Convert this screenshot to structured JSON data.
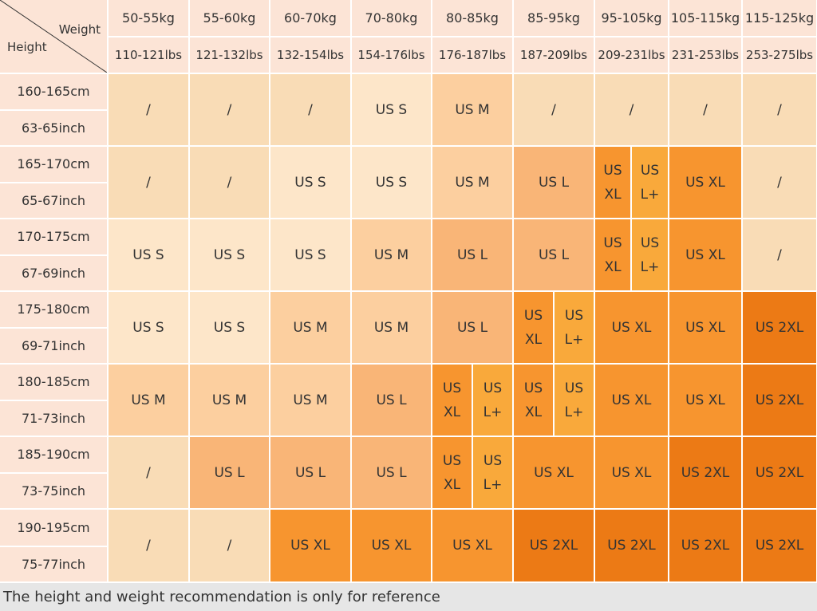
{
  "header": {
    "weight_label": "Weight",
    "height_label": "Height",
    "columns": [
      {
        "kg": "50-55kg",
        "lbs": "110-121lbs"
      },
      {
        "kg": "55-60kg",
        "lbs": "121-132lbs"
      },
      {
        "kg": "60-70kg",
        "lbs": "132-154lbs"
      },
      {
        "kg": "70-80kg",
        "lbs": "154-176lbs"
      },
      {
        "kg": "80-85kg",
        "lbs": "176-187lbs"
      },
      {
        "kg": "85-95kg",
        "lbs": "187-209lbs"
      },
      {
        "kg": "95-105kg",
        "lbs": "209-231lbs"
      },
      {
        "kg": "105-115kg",
        "lbs": "231-253lbs"
      },
      {
        "kg": "115-125kg",
        "lbs": "253-275lbs"
      }
    ]
  },
  "palette": {
    "/": "#f9dcb6",
    "US S": "#fde6c9",
    "US M": "#fccf9f",
    "US L": "#f9b577",
    "US XL": "#f7952f",
    "US L+": "#f9a93b",
    "US 2XL": "#ec7a15"
  },
  "rows": [
    {
      "cm": "160-165cm",
      "inch": "63-65inch",
      "cells": [
        "/",
        "/",
        "/",
        "US S",
        "US M",
        "/",
        "/",
        "/",
        "/"
      ]
    },
    {
      "cm": "165-170cm",
      "inch": "65-67inch",
      "cells": [
        "/",
        "/",
        "US S",
        "US S",
        "US M",
        "US L",
        [
          "US XL",
          "US L+"
        ],
        "US XL",
        "/"
      ]
    },
    {
      "cm": "170-175cm",
      "inch": "67-69inch",
      "cells": [
        "US S",
        "US S",
        "US S",
        "US M",
        "US L",
        "US L",
        [
          "US XL",
          "US L+"
        ],
        "US XL",
        "/"
      ]
    },
    {
      "cm": "175-180cm",
      "inch": "69-71inch",
      "cells": [
        "US S",
        "US S",
        "US M",
        "US M",
        "US L",
        [
          "US XL",
          "US L+"
        ],
        "US XL",
        "US XL",
        "US 2XL"
      ]
    },
    {
      "cm": "180-185cm",
      "inch": "71-73inch",
      "cells": [
        "US M",
        "US M",
        "US M",
        "US L",
        [
          "US XL",
          "US L+"
        ],
        [
          "US XL",
          "US L+"
        ],
        "US XL",
        "US XL",
        "US 2XL"
      ]
    },
    {
      "cm": "185-190cm",
      "inch": "73-75inch",
      "cells": [
        "/",
        "US L",
        "US L",
        "US L",
        [
          "US XL",
          "US L+"
        ],
        "US XL",
        "US XL",
        "US 2XL",
        "US 2XL"
      ]
    },
    {
      "cm": "190-195cm",
      "inch": "75-77inch",
      "cells": [
        "/",
        "/",
        "US XL",
        "US XL",
        "US XL",
        "US 2XL",
        "US 2XL",
        "US 2XL",
        "US 2XL"
      ]
    }
  ],
  "footer": "The height and weight recommendation is only for reference"
}
